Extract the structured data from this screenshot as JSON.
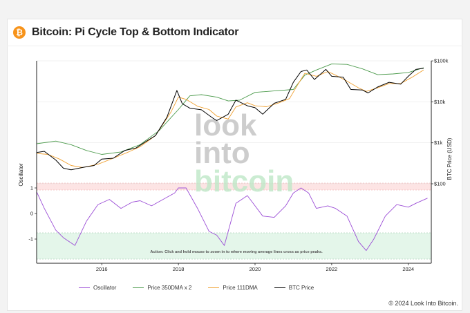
{
  "header": {
    "logo_glyph": "₿",
    "title": "Bitcoin: Pi Cycle Top & Bottom Indicator"
  },
  "footer": {
    "copyright": "© 2024 Look Into Bitcoin."
  },
  "watermark": {
    "line1": "look",
    "line2": "into",
    "line3": "bitcoin"
  },
  "annotation": "Action: Click and hold mouse to zoom in to where moving average lines cross as price peaks.",
  "colors": {
    "oscillator": "#9b4dd6",
    "dma350x2": "#4b9a4b",
    "dma111": "#f0a030",
    "btc": "#000000",
    "top_band": "#fde4e4",
    "bottom_band": "#e4f6ea"
  },
  "chart_data": {
    "type": "line",
    "x_ticks": [
      "2016",
      "2018",
      "2020",
      "2022",
      "2024"
    ],
    "x_range": [
      2014.3,
      2024.6
    ],
    "ylabel_left": "Oscillator",
    "ylabel_right": "BTC Price (USD)",
    "y_left_ticks": [
      "1",
      "0",
      "-1"
    ],
    "y_left_range": [
      -1.9,
      1.4
    ],
    "y_right_ticks": [
      "$100",
      "$1k",
      "$10k",
      "$100k"
    ],
    "y_right_range_log10": [
      1.5,
      5.0
    ],
    "series": [
      {
        "name": "Oscillator",
        "axis": "left",
        "x": [
          2014.3,
          2014.5,
          2014.8,
          2015.0,
          2015.3,
          2015.6,
          2015.9,
          2016.2,
          2016.5,
          2016.8,
          2017.0,
          2017.3,
          2017.6,
          2017.9,
          2018.0,
          2018.2,
          2018.5,
          2018.8,
          2019.0,
          2019.2,
          2019.5,
          2019.8,
          2020.0,
          2020.2,
          2020.5,
          2020.8,
          2021.0,
          2021.2,
          2021.4,
          2021.6,
          2021.9,
          2022.1,
          2022.4,
          2022.7,
          2022.9,
          2023.1,
          2023.4,
          2023.7,
          2024.0,
          2024.2,
          2024.5
        ],
        "values": [
          0.85,
          0.2,
          -0.65,
          -0.95,
          -1.25,
          -0.3,
          0.35,
          0.55,
          0.2,
          0.45,
          0.5,
          0.3,
          0.55,
          0.8,
          1.0,
          1.0,
          0.2,
          -0.7,
          -0.85,
          -1.25,
          0.4,
          0.7,
          0.3,
          -0.1,
          -0.15,
          0.3,
          0.8,
          1.0,
          0.8,
          0.2,
          0.3,
          0.2,
          -0.1,
          -1.1,
          -1.45,
          -1.0,
          -0.1,
          0.35,
          0.25,
          0.4,
          0.6
        ]
      },
      {
        "name": "Price 350DMA x 2",
        "axis": "right",
        "x": [
          2014.3,
          2014.8,
          2015.2,
          2015.6,
          2016.0,
          2016.5,
          2017.0,
          2017.5,
          2018.0,
          2018.3,
          2018.6,
          2019.0,
          2019.3,
          2019.6,
          2020.0,
          2020.5,
          2021.0,
          2021.3,
          2021.6,
          2022.0,
          2022.4,
          2022.8,
          2023.2,
          2023.6,
          2024.0,
          2024.4
        ],
        "values": [
          950,
          1100,
          900,
          650,
          520,
          600,
          900,
          2000,
          6500,
          14000,
          15000,
          13000,
          10500,
          11000,
          17000,
          18500,
          20000,
          45000,
          60000,
          84000,
          82000,
          64000,
          46000,
          48000,
          52000,
          68000
        ]
      },
      {
        "name": "Price 111DMA",
        "axis": "right",
        "x": [
          2014.3,
          2014.6,
          2014.9,
          2015.2,
          2015.5,
          2015.9,
          2016.3,
          2016.7,
          2017.0,
          2017.4,
          2017.8,
          2018.0,
          2018.2,
          2018.5,
          2018.8,
          2019.0,
          2019.3,
          2019.5,
          2019.8,
          2020.0,
          2020.3,
          2020.6,
          2020.9,
          2021.1,
          2021.3,
          2021.6,
          2021.9,
          2022.1,
          2022.4,
          2022.7,
          2022.9,
          2023.2,
          2023.5,
          2023.8,
          2024.1,
          2024.4
        ],
        "values": [
          550,
          520,
          400,
          280,
          250,
          300,
          420,
          600,
          800,
          1500,
          5500,
          13000,
          11500,
          7800,
          6500,
          4500,
          3800,
          7500,
          9500,
          8000,
          7600,
          9300,
          12000,
          25000,
          50000,
          42000,
          55000,
          45000,
          32000,
          22000,
          18000,
          22000,
          28000,
          28000,
          40000,
          60000
        ]
      },
      {
        "name": "BTC Price",
        "axis": "right",
        "x": [
          2014.3,
          2014.5,
          2014.8,
          2015.0,
          2015.2,
          2015.5,
          2015.8,
          2016.0,
          2016.3,
          2016.6,
          2016.9,
          2017.1,
          2017.4,
          2017.7,
          2017.96,
          2018.1,
          2018.3,
          2018.6,
          2018.9,
          2019.0,
          2019.3,
          2019.5,
          2019.8,
          2020.0,
          2020.2,
          2020.5,
          2020.8,
          2021.0,
          2021.2,
          2021.35,
          2021.55,
          2021.85,
          2022.0,
          2022.3,
          2022.5,
          2022.8,
          2022.95,
          2023.2,
          2023.5,
          2023.8,
          2024.0,
          2024.2,
          2024.4
        ],
        "values": [
          580,
          620,
          380,
          240,
          220,
          250,
          280,
          400,
          420,
          650,
          750,
          1000,
          1500,
          4200,
          19000,
          9000,
          7000,
          6400,
          4000,
          3500,
          5000,
          11000,
          8000,
          7200,
          5000,
          9200,
          11500,
          30000,
          55000,
          60000,
          35000,
          62000,
          42000,
          40000,
          20000,
          19500,
          16500,
          23000,
          30000,
          27000,
          42000,
          62000,
          66000
        ]
      }
    ],
    "top_band": [
      0.95,
      1.2
    ],
    "bottom_band": [
      -1.75,
      -0.75
    ]
  }
}
